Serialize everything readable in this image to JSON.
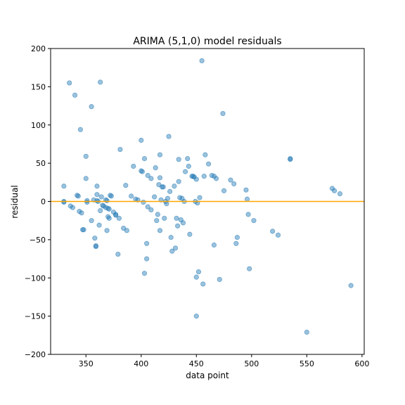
{
  "chart_data": {
    "type": "scatter",
    "title": "ARIMA (5,1,0) model residuals",
    "xlabel": "data point",
    "ylabel": "residual",
    "xlim": [
      318,
      602
    ],
    "ylim": [
      -200,
      200
    ],
    "xticks": [
      350,
      400,
      450,
      500,
      550,
      600
    ],
    "xtick_labels": [
      "350",
      "400",
      "450",
      "500",
      "550",
      "600"
    ],
    "yticks": [
      -200,
      -150,
      -100,
      -50,
      0,
      50,
      100,
      150,
      200
    ],
    "ytick_labels": [
      "−200",
      "−150",
      "−100",
      "−50",
      "0",
      "50",
      "100",
      "150",
      "200"
    ],
    "grid": false,
    "hline": {
      "y": 0,
      "color": "#ffa500"
    },
    "point_color": "#1f77b4",
    "point_alpha": 0.45,
    "points": [
      [
        330,
        20
      ],
      [
        330,
        0
      ],
      [
        330,
        -1
      ],
      [
        335,
        155
      ],
      [
        336,
        -6
      ],
      [
        338,
        -8
      ],
      [
        340,
        139
      ],
      [
        342,
        8
      ],
      [
        343,
        7
      ],
      [
        344,
        -13
      ],
      [
        345,
        94
      ],
      [
        346,
        -15
      ],
      [
        347,
        -37
      ],
      [
        348,
        -37
      ],
      [
        350,
        59
      ],
      [
        350,
        30
      ],
      [
        351,
        -1
      ],
      [
        351,
        1
      ],
      [
        355,
        124
      ],
      [
        355,
        -25
      ],
      [
        357,
        2
      ],
      [
        358,
        -48
      ],
      [
        359,
        -58
      ],
      [
        359,
        -59
      ],
      [
        360,
        20
      ],
      [
        360,
        9
      ],
      [
        360,
        1
      ],
      [
        361,
        0
      ],
      [
        362,
        -31
      ],
      [
        363,
        -12
      ],
      [
        363,
        156
      ],
      [
        364,
        6
      ],
      [
        365,
        -5
      ],
      [
        366,
        -6
      ],
      [
        368,
        -8
      ],
      [
        368,
        2
      ],
      [
        369,
        -38
      ],
      [
        369,
        1
      ],
      [
        370,
        -9
      ],
      [
        370,
        -20
      ],
      [
        371,
        -10
      ],
      [
        371,
        -22
      ],
      [
        372,
        8
      ],
      [
        373,
        7
      ],
      [
        375,
        -14
      ],
      [
        377,
        -17
      ],
      [
        377,
        -18
      ],
      [
        379,
        -69
      ],
      [
        380,
        -22
      ],
      [
        381,
        68
      ],
      [
        384,
        -35
      ],
      [
        386,
        21
      ],
      [
        387,
        -38
      ],
      [
        391,
        7
      ],
      [
        393,
        46
      ],
      [
        395,
        3
      ],
      [
        397,
        2
      ],
      [
        400,
        80
      ],
      [
        400,
        40
      ],
      [
        401,
        39
      ],
      [
        402,
        -1
      ],
      [
        403,
        -94
      ],
      [
        403,
        56
      ],
      [
        405,
        -55
      ],
      [
        405,
        -75
      ],
      [
        406,
        -7
      ],
      [
        406,
        34
      ],
      [
        409,
        -11
      ],
      [
        409,
        30
      ],
      [
        412,
        6
      ],
      [
        413,
        44
      ],
      [
        414,
        -25
      ],
      [
        415,
        -17
      ],
      [
        416,
        22
      ],
      [
        417,
        61
      ],
      [
        417,
        -38
      ],
      [
        417,
        31
      ],
      [
        418,
        2
      ],
      [
        419,
        19
      ],
      [
        420,
        19
      ],
      [
        421,
        -22
      ],
      [
        422,
        0
      ],
      [
        423,
        -3
      ],
      [
        424,
        4
      ],
      [
        425,
        85
      ],
      [
        426,
        13
      ],
      [
        427,
        -47
      ],
      [
        428,
        -65
      ],
      [
        430,
        20
      ],
      [
        431,
        -61
      ],
      [
        432,
        -22
      ],
      [
        433,
        -32
      ],
      [
        434,
        55
      ],
      [
        434,
        26
      ],
      [
        435,
        5
      ],
      [
        436,
        -24
      ],
      [
        437,
        4
      ],
      [
        438,
        -28
      ],
      [
        439,
        0
      ],
      [
        440,
        39
      ],
      [
        442,
        56
      ],
      [
        443,
        46
      ],
      [
        444,
        -43
      ],
      [
        446,
        33
      ],
      [
        447,
        33
      ],
      [
        448,
        32
      ],
      [
        449,
        0
      ],
      [
        450,
        -99
      ],
      [
        450,
        -150
      ],
      [
        450,
        29
      ],
      [
        451,
        -2
      ],
      [
        452,
        -92
      ],
      [
        453,
        5
      ],
      [
        455,
        184
      ],
      [
        456,
        -108
      ],
      [
        457,
        33
      ],
      [
        458,
        61
      ],
      [
        461,
        49
      ],
      [
        464,
        34
      ],
      [
        466,
        33
      ],
      [
        466,
        -57
      ],
      [
        468,
        30
      ],
      [
        471,
        -102
      ],
      [
        474,
        115
      ],
      [
        475,
        14
      ],
      [
        481,
        28
      ],
      [
        484,
        23
      ],
      [
        486,
        -55
      ],
      [
        487,
        -47
      ],
      [
        495,
        15
      ],
      [
        496,
        3
      ],
      [
        497,
        -17
      ],
      [
        498,
        -88
      ],
      [
        502,
        -25
      ],
      [
        519,
        -39
      ],
      [
        524,
        -44
      ],
      [
        535,
        56
      ],
      [
        535,
        55
      ],
      [
        550,
        -171
      ],
      [
        573,
        17
      ],
      [
        575,
        14
      ],
      [
        580,
        10
      ],
      [
        590,
        -110
      ]
    ]
  }
}
